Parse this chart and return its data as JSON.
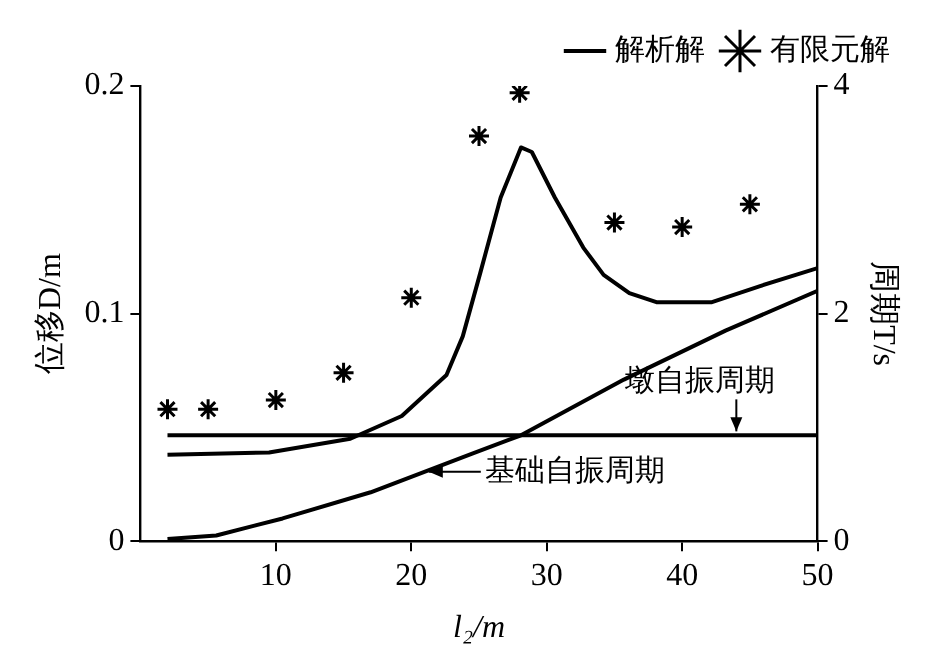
{
  "chart_data": {
    "type": "line",
    "xlabel": "l₂/m",
    "ylabel": "位移D/m",
    "y2label": "周期T/s",
    "xlim": [
      0,
      50
    ],
    "xticks": [
      10,
      20,
      30,
      40,
      50
    ],
    "ylim": [
      0,
      0.2
    ],
    "yticks": [
      0,
      0.1,
      0.2
    ],
    "y2lim": [
      0,
      4
    ],
    "y2ticks": [
      0,
      2,
      4
    ],
    "grid": false,
    "legend": "top right",
    "series": [
      {
        "name": "解析解",
        "color": "#000000",
        "x": [
          2,
          9.5,
          15.5,
          19.3,
          22.6,
          23.8,
          25.1,
          26.6,
          28.1,
          28.9,
          30.6,
          32.7,
          34.2,
          36.1,
          38.1,
          42.2,
          45.7,
          50
        ],
        "values": [
          0.038,
          0.039,
          0.045,
          0.055,
          0.073,
          0.09,
          0.118,
          0.151,
          0.173,
          0.171,
          0.151,
          0.129,
          0.117,
          0.109,
          0.105,
          0.105,
          0.112,
          0.12
        ]
      },
      {
        "name": "有限元解",
        "type": "scatter",
        "color": "#000000",
        "marker": "cross",
        "x": [
          2,
          5,
          10,
          15,
          20,
          25,
          28,
          35,
          40,
          45
        ],
        "values": [
          0.058,
          0.058,
          0.062,
          0.074,
          0.107,
          0.178,
          0.197,
          0.14,
          0.138,
          0.148
        ]
      },
      {
        "name": "墩自振周期",
        "type": "line",
        "axis": "y2",
        "color": "#000000",
        "x": [
          2,
          50
        ],
        "values": [
          0.93,
          0.93
        ]
      },
      {
        "name": "基础自振周期",
        "type": "line",
        "axis": "y2",
        "color": "#000000",
        "x": [
          2,
          5.6,
          10.5,
          17,
          24.5,
          28.1,
          35.7,
          43.2,
          50
        ],
        "values": [
          0.02,
          0.05,
          0.2,
          0.43,
          0.77,
          0.93,
          1.42,
          1.85,
          2.2
        ]
      }
    ]
  }
}
